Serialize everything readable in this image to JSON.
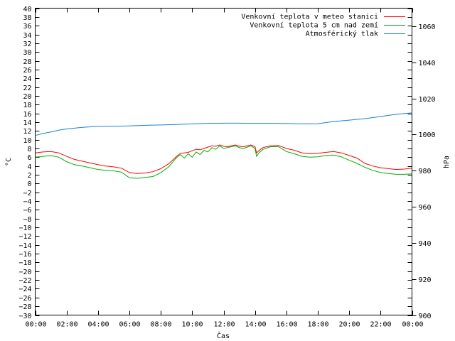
{
  "chart_data": {
    "type": "line",
    "xlabel": "Čas",
    "ylabel": "°C",
    "y2label": "hPa",
    "x_tick_labels": [
      "00:00",
      "02:00",
      "04:00",
      "06:00",
      "08:00",
      "10:00",
      "12:00",
      "14:00",
      "16:00",
      "18:00",
      "20:00",
      "22:00",
      "00:00"
    ],
    "x_range_hours": [
      0,
      24
    ],
    "ylim": [
      -30,
      40
    ],
    "y_ticks_step": 2,
    "y2lim": [
      900,
      1070
    ],
    "y2_ticks": [
      900,
      920,
      940,
      960,
      980,
      1000,
      1020,
      1040,
      1060
    ],
    "legend_position": "top-right",
    "grid": false,
    "series": [
      {
        "name": "Venkovní teplota v meteo stanici",
        "color": "#ff0000",
        "axis": "left",
        "x": [
          0,
          0.5,
          1,
          1.5,
          2,
          2.5,
          3,
          3.5,
          4,
          4.5,
          5,
          5.5,
          6,
          6.5,
          7,
          7.5,
          8,
          8.5,
          9,
          9.25,
          9.5,
          9.75,
          10,
          10.25,
          10.5,
          10.75,
          11,
          11.25,
          11.5,
          11.75,
          12,
          12.25,
          12.5,
          12.75,
          13,
          13.25,
          13.5,
          13.75,
          14,
          14.1,
          14.25,
          14.5,
          14.75,
          15,
          15.5,
          16,
          16.5,
          17,
          17.5,
          18,
          18.5,
          19,
          19.5,
          20,
          20.5,
          21,
          21.5,
          22,
          22.5,
          23,
          23.5,
          24
        ],
        "y": [
          7.0,
          7.2,
          7.3,
          7.0,
          6.2,
          5.5,
          5.1,
          4.7,
          4.3,
          4.0,
          3.8,
          3.5,
          2.5,
          2.3,
          2.4,
          2.7,
          3.4,
          4.5,
          6.2,
          6.9,
          7.0,
          7.1,
          7.5,
          7.8,
          7.7,
          8.0,
          8.3,
          8.6,
          8.5,
          8.8,
          8.5,
          8.4,
          8.6,
          8.8,
          8.5,
          8.4,
          8.6,
          8.8,
          8.4,
          7.0,
          7.5,
          8.2,
          8.4,
          8.6,
          8.7,
          8.0,
          7.6,
          7.0,
          6.8,
          6.9,
          7.1,
          7.3,
          7.0,
          6.4,
          5.8,
          4.6,
          4.0,
          3.6,
          3.4,
          3.2,
          3.3,
          3.5
        ]
      },
      {
        "name": "Venkovní teplota 5 cm nad zemí",
        "color": "#00b000",
        "axis": "left",
        "x": [
          0,
          0.5,
          1,
          1.5,
          2,
          2.5,
          3,
          3.5,
          4,
          4.5,
          5,
          5.5,
          6,
          6.5,
          7,
          7.5,
          8,
          8.5,
          9,
          9.25,
          9.5,
          9.75,
          10,
          10.25,
          10.5,
          10.75,
          11,
          11.25,
          11.5,
          11.75,
          12,
          12.25,
          12.5,
          12.75,
          13,
          13.25,
          13.5,
          13.75,
          14,
          14.1,
          14.25,
          14.5,
          14.75,
          15,
          15.5,
          16,
          16.5,
          17,
          17.5,
          18,
          18.5,
          19,
          19.5,
          20,
          20.5,
          21,
          21.5,
          22,
          22.5,
          23,
          23.5,
          24
        ],
        "y": [
          6.0,
          6.2,
          6.4,
          6.0,
          5.0,
          4.3,
          4.0,
          3.6,
          3.2,
          3.0,
          2.9,
          2.6,
          1.3,
          1.2,
          1.4,
          1.6,
          2.5,
          3.8,
          5.9,
          6.6,
          5.8,
          6.8,
          6.0,
          7.2,
          6.6,
          7.6,
          7.2,
          8.2,
          7.8,
          8.6,
          8.0,
          8.2,
          8.4,
          8.6,
          8.2,
          8.0,
          8.3,
          8.6,
          8.0,
          6.2,
          7.0,
          7.8,
          8.1,
          8.4,
          8.4,
          7.3,
          6.8,
          6.2,
          6.0,
          6.1,
          6.4,
          6.5,
          6.1,
          5.3,
          4.6,
          3.7,
          3.0,
          2.5,
          2.3,
          2.1,
          2.1,
          2.2
        ]
      },
      {
        "name": "Atmosférický tlak",
        "color": "#1a80d8",
        "axis": "right",
        "x": [
          0,
          0.5,
          1,
          1.5,
          2,
          3,
          4,
          5,
          6,
          7,
          8,
          9,
          10,
          11,
          12,
          13,
          14,
          15,
          16,
          17,
          18,
          19,
          20,
          21,
          22,
          23,
          24
        ],
        "y": [
          999.5,
          1000.6,
          1001.4,
          1002.4,
          1003.1,
          1004.0,
          1004.5,
          1004.6,
          1004.8,
          1005.1,
          1005.3,
          1005.6,
          1005.9,
          1006.2,
          1006.3,
          1006.3,
          1006.2,
          1006.2,
          1006.1,
          1005.9,
          1006.0,
          1007.2,
          1008.0,
          1008.8,
          1010.0,
          1011.2,
          1012.0
        ]
      }
    ]
  }
}
